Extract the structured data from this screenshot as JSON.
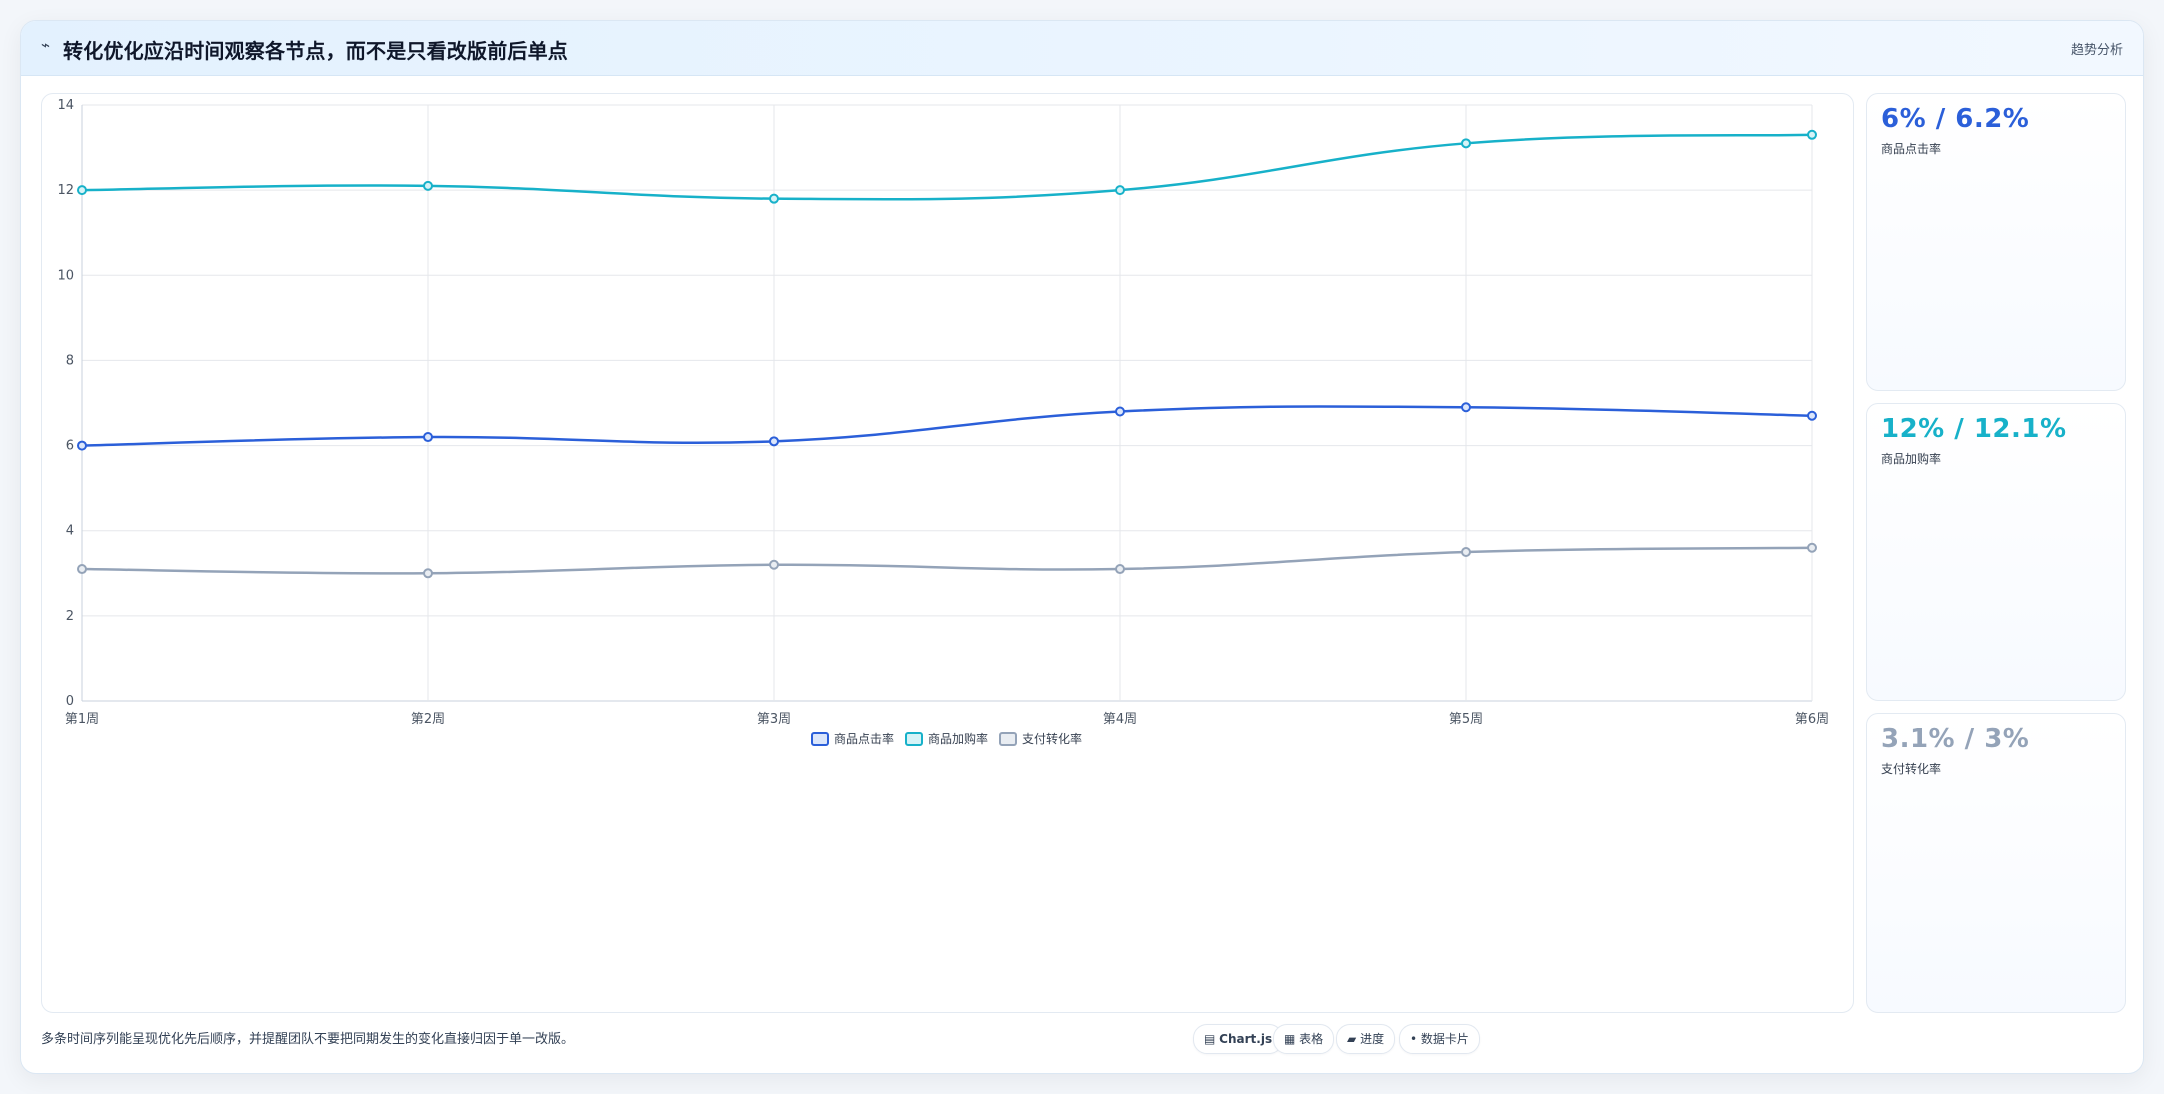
{
  "header": {
    "title_icon": "⌁",
    "title": "转化优化应沿时间观察各节点，而不是只看改版前后单点",
    "action_label": "趋势分析"
  },
  "chart_data": {
    "type": "line",
    "categories": [
      "第1周",
      "第2周",
      "第3周",
      "第4周",
      "第5周",
      "第6周"
    ],
    "ylim": [
      0,
      14
    ],
    "yticks": [
      0,
      2,
      4,
      6,
      8,
      10,
      12,
      14
    ],
    "grid": true,
    "legend": "bottom",
    "title": "",
    "xlabel": "",
    "ylabel": "",
    "series": [
      {
        "name": "商品点击率",
        "values": [
          6.0,
          6.2,
          6.1,
          6.8,
          6.9,
          6.7
        ],
        "color": "#2b5fd9",
        "fill": "#dbe6fb"
      },
      {
        "name": "商品加购率",
        "values": [
          12.0,
          12.1,
          11.8,
          12.0,
          13.1,
          13.3
        ],
        "color": "#17b1c9",
        "fill": "#d6f3f7"
      },
      {
        "name": "支付转化率",
        "values": [
          3.1,
          3.0,
          3.2,
          3.1,
          3.5,
          3.6
        ],
        "color": "#94a3b8",
        "fill": "#e9edf2"
      }
    ]
  },
  "kpis": [
    {
      "value": "6% / 6.2%",
      "label": "商品点击率",
      "color": "#2b5fd9"
    },
    {
      "value": "12% / 12.1%",
      "label": "商品加购率",
      "color": "#17b1c9"
    },
    {
      "value": "3.1% / 3%",
      "label": "支付转化率",
      "color": "#94a3b8"
    }
  ],
  "footer": {
    "note": "多条时间序列能呈现优化先后顺序，并提醒团队不要把同期发生的变化直接归因于单一改版。",
    "chips": [
      {
        "icon": "▤",
        "label": "Chart.js",
        "bold": true
      },
      {
        "icon": "▦",
        "label": "表格",
        "bold": false
      },
      {
        "icon": "▰",
        "label": "进度",
        "bold": false
      },
      {
        "icon": "•",
        "label": "数据卡片",
        "bold": false
      }
    ]
  }
}
